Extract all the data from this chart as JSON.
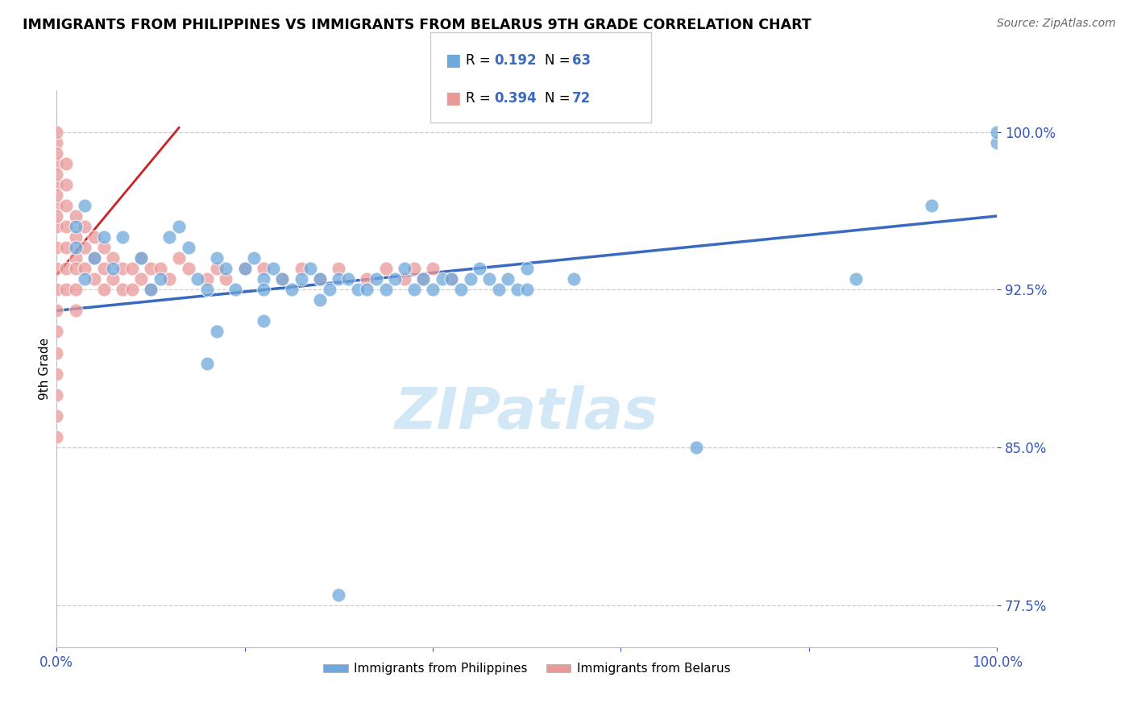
{
  "title": "IMMIGRANTS FROM PHILIPPINES VS IMMIGRANTS FROM BELARUS 9TH GRADE CORRELATION CHART",
  "source": "Source: ZipAtlas.com",
  "ylabel": "9th Grade",
  "xlim": [
    0,
    100
  ],
  "ylim": [
    75.5,
    102
  ],
  "ytick_values": [
    77.5,
    85.0,
    92.5,
    100.0
  ],
  "ytick_labels": [
    "77.5%",
    "85.0%",
    "92.5%",
    "100.0%"
  ],
  "xtick_values": [
    0,
    20,
    40,
    60,
    80,
    100
  ],
  "xtick_labels": [
    "0.0%",
    "",
    "",
    "",
    "",
    "100.0%"
  ],
  "blue_R": 0.192,
  "blue_N": 63,
  "pink_R": 0.394,
  "pink_N": 72,
  "blue_color": "#6fa8dc",
  "pink_color": "#ea9999",
  "blue_line_color": "#3a6abf",
  "pink_line_color": "#cc2222",
  "legend_label_blue": "Immigrants from Philippines",
  "legend_label_pink": "Immigrants from Belarus",
  "watermark": "ZIPatlas",
  "blue_trend_x": [
    0,
    100
  ],
  "blue_trend_y": [
    91.5,
    96.0
  ],
  "pink_trend_x": [
    0,
    13
  ],
  "pink_trend_y": [
    93.2,
    100.2
  ],
  "blue_x": [
    2,
    3,
    5,
    7,
    9,
    10,
    11,
    12,
    13,
    14,
    15,
    16,
    17,
    18,
    19,
    20,
    21,
    22,
    22,
    23,
    24,
    25,
    26,
    27,
    28,
    28,
    29,
    30,
    31,
    32,
    33,
    34,
    35,
    36,
    37,
    38,
    39,
    40,
    41,
    42,
    43,
    44,
    45,
    46,
    47,
    48,
    49,
    50,
    22,
    17,
    85,
    16,
    68,
    93,
    100,
    100,
    3,
    2,
    4,
    6,
    50,
    55,
    30
  ],
  "blue_y": [
    95.5,
    96.5,
    95.0,
    95.0,
    94.0,
    92.5,
    93.0,
    95.0,
    95.5,
    94.5,
    93.0,
    92.5,
    94.0,
    93.5,
    92.5,
    93.5,
    94.0,
    93.0,
    92.5,
    93.5,
    93.0,
    92.5,
    93.0,
    93.5,
    93.0,
    92.0,
    92.5,
    93.0,
    93.0,
    92.5,
    92.5,
    93.0,
    92.5,
    93.0,
    93.5,
    92.5,
    93.0,
    92.5,
    93.0,
    93.0,
    92.5,
    93.0,
    93.5,
    93.0,
    92.5,
    93.0,
    92.5,
    93.5,
    91.0,
    90.5,
    93.0,
    89.0,
    85.0,
    96.5,
    99.5,
    100.0,
    93.0,
    94.5,
    94.0,
    93.5,
    92.5,
    93.0,
    78.0
  ],
  "pink_x": [
    0,
    0,
    0,
    0,
    0,
    0,
    0,
    0,
    0,
    0,
    0,
    0,
    0,
    0,
    0,
    0,
    0,
    0,
    0,
    0,
    1,
    1,
    1,
    1,
    1,
    1,
    1,
    2,
    2,
    2,
    2,
    2,
    2,
    3,
    3,
    3,
    4,
    4,
    4,
    5,
    5,
    5,
    6,
    6,
    7,
    7,
    8,
    8,
    9,
    9,
    10,
    10,
    11,
    12,
    13,
    14,
    16,
    17,
    18,
    20,
    22,
    24,
    26,
    28,
    30,
    33,
    35,
    37,
    38,
    39,
    40,
    42
  ],
  "pink_y": [
    97.5,
    98.5,
    99.5,
    100.0,
    96.5,
    95.5,
    94.5,
    93.5,
    92.5,
    91.5,
    90.5,
    89.5,
    88.5,
    87.5,
    86.5,
    85.5,
    96.0,
    97.0,
    98.0,
    99.0,
    98.5,
    97.5,
    96.5,
    95.5,
    94.5,
    93.5,
    92.5,
    96.0,
    95.0,
    94.0,
    93.5,
    92.5,
    91.5,
    95.5,
    94.5,
    93.5,
    95.0,
    94.0,
    93.0,
    94.5,
    93.5,
    92.5,
    94.0,
    93.0,
    93.5,
    92.5,
    93.5,
    92.5,
    94.0,
    93.0,
    93.5,
    92.5,
    93.5,
    93.0,
    94.0,
    93.5,
    93.0,
    93.5,
    93.0,
    93.5,
    93.5,
    93.0,
    93.5,
    93.0,
    93.5,
    93.0,
    93.5,
    93.0,
    93.5,
    93.0,
    93.5,
    93.0
  ]
}
